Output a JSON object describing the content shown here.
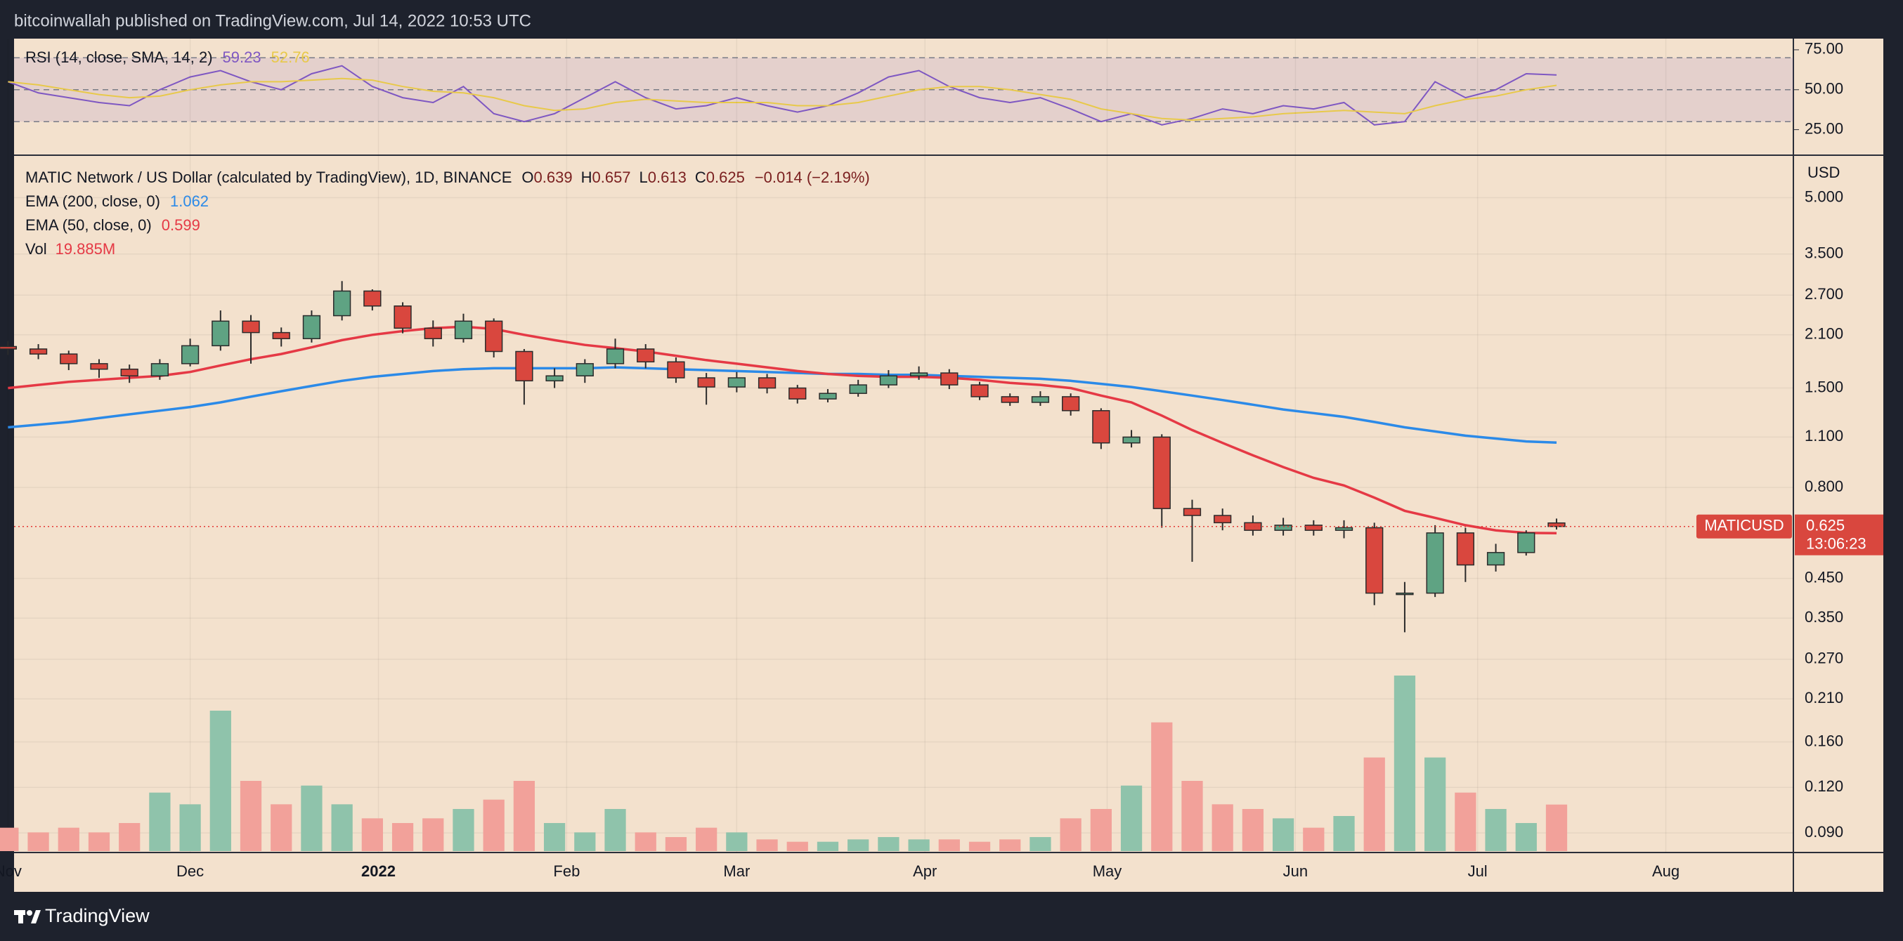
{
  "header": {
    "publisher": "bitcoinwallah published on TradingView.com, Jul 14, 2022 10:53 UTC"
  },
  "footer": {
    "brand": "TradingView"
  },
  "chart_data": [
    {
      "type": "rsi",
      "title": "RSI (14, close, SMA, 14, 2)",
      "x": [
        0,
        5,
        10,
        15,
        20,
        25,
        30,
        35,
        40,
        45,
        50,
        55,
        60,
        65,
        70,
        75,
        80,
        85,
        90,
        95,
        100,
        105,
        110,
        115,
        120,
        125,
        130,
        135,
        140,
        145,
        150,
        155,
        160,
        165,
        170,
        175,
        180,
        185,
        190,
        195,
        200,
        205,
        210,
        215,
        220,
        225,
        230,
        235,
        240,
        245,
        250,
        255
      ],
      "xlim": [
        1,
        294
      ],
      "ylim": [
        9,
        82
      ],
      "yticks": [
        {
          "value": 75,
          "label": "75.00"
        },
        {
          "value": 50,
          "label": "50.00"
        },
        {
          "value": 25,
          "label": "25.00"
        }
      ],
      "levels": [
        70,
        50,
        30
      ],
      "band_color": "#7e57c2",
      "series": [
        {
          "color": "#7e57c2",
          "values": [
            55,
            48,
            45,
            42,
            40,
            50,
            58,
            62,
            55,
            50,
            60,
            65,
            52,
            45,
            42,
            52,
            35,
            30,
            35,
            45,
            55,
            45,
            38,
            40,
            45,
            40,
            36,
            40,
            48,
            58,
            62,
            52,
            45,
            42,
            45,
            38,
            30,
            35,
            28,
            32,
            38,
            35,
            40,
            38,
            42,
            28,
            30,
            55,
            45,
            50,
            60,
            59.23
          ]
        },
        {
          "color": "#e8c94a",
          "values": [
            55,
            53,
            50,
            47,
            45,
            46,
            50,
            53,
            55,
            55,
            56,
            57,
            56,
            52,
            49,
            48,
            45,
            40,
            37,
            38,
            42,
            44,
            43,
            42,
            42,
            42,
            40,
            40,
            42,
            46,
            50,
            52,
            52,
            50,
            47,
            44,
            38,
            35,
            32,
            31,
            32,
            33,
            35,
            36,
            37,
            36,
            35,
            40,
            44,
            46,
            50,
            52.76
          ]
        }
      ]
    },
    {
      "type": "candlestick",
      "title": "MATIC Network / US Dollar (calculated by TradingView), 1D, BINANCE",
      "ohlc_labels": [
        "O",
        "H",
        "L",
        "C"
      ],
      "change": "−0.014 (−2.19%)",
      "symbol": "MATICUSD",
      "countdown": "13:06:23",
      "y_unit": "USD",
      "log_scale": true,
      "grid": true,
      "up_color": "#5fa383",
      "down_color": "#d9473e",
      "x": [
        0,
        5,
        10,
        15,
        20,
        25,
        30,
        35,
        40,
        45,
        50,
        55,
        60,
        65,
        70,
        75,
        80,
        85,
        90,
        95,
        100,
        105,
        110,
        115,
        120,
        125,
        130,
        135,
        140,
        145,
        150,
        155,
        160,
        165,
        170,
        175,
        180,
        185,
        190,
        195,
        200,
        205,
        210,
        215,
        220,
        225,
        230,
        235,
        240,
        245,
        250,
        255
      ],
      "xlim": [
        1,
        294
      ],
      "xticks": [
        {
          "value": 0,
          "label": "Nov"
        },
        {
          "value": 30,
          "label": "Dec"
        },
        {
          "value": 61,
          "label": "2022"
        },
        {
          "value": 92,
          "label": "Feb"
        },
        {
          "value": 120,
          "label": "Mar"
        },
        {
          "value": 151,
          "label": "Apr"
        },
        {
          "value": 181,
          "label": "May"
        },
        {
          "value": 212,
          "label": "Jun"
        },
        {
          "value": 242,
          "label": "Jul"
        },
        {
          "value": 273,
          "label": "Aug"
        }
      ],
      "ylim": [
        0.0795,
        6.54
      ],
      "yticks": [
        {
          "value": 5,
          "label": "5.000"
        },
        {
          "value": 3.5,
          "label": "3.500"
        },
        {
          "value": 2.7,
          "label": "2.700"
        },
        {
          "value": 2.1,
          "label": "2.100"
        },
        {
          "value": 1.5,
          "label": "1.500"
        },
        {
          "value": 1.1,
          "label": "1.100"
        },
        {
          "value": 0.8,
          "label": "0.800"
        },
        {
          "value": 0.45,
          "label": "0.450"
        },
        {
          "value": 0.35,
          "label": "0.350"
        },
        {
          "value": 0.27,
          "label": "0.270"
        },
        {
          "value": 0.21,
          "label": "0.210"
        },
        {
          "value": 0.16,
          "label": "0.160"
        },
        {
          "value": 0.12,
          "label": "0.120"
        },
        {
          "value": 0.09,
          "label": "0.090"
        }
      ],
      "open": [
        1.95,
        1.92,
        1.86,
        1.75,
        1.69,
        1.62,
        1.75,
        1.96,
        2.29,
        2.13,
        2.05,
        2.37,
        2.77,
        2.52,
        2.19,
        2.05,
        2.29,
        1.89,
        1.57,
        1.62,
        1.75,
        1.92,
        1.77,
        1.6,
        1.51,
        1.6,
        1.5,
        1.4,
        1.45,
        1.53,
        1.62,
        1.65,
        1.53,
        1.42,
        1.37,
        1.42,
        1.3,
        1.06,
        1.1,
        0.7,
        0.67,
        0.64,
        0.61,
        0.63,
        0.61,
        0.62,
        0.41,
        0.41,
        0.6,
        0.49,
        0.53,
        0.639
      ],
      "high": [
        2.02,
        1.98,
        1.9,
        1.8,
        1.74,
        1.8,
        2.05,
        2.45,
        2.38,
        2.2,
        2.45,
        2.95,
        2.8,
        2.58,
        2.3,
        2.4,
        2.33,
        1.92,
        1.7,
        1.8,
        2.05,
        1.98,
        1.82,
        1.65,
        1.66,
        1.64,
        1.53,
        1.49,
        1.58,
        1.68,
        1.72,
        1.69,
        1.56,
        1.45,
        1.47,
        1.45,
        1.32,
        1.15,
        1.12,
        0.74,
        0.7,
        0.67,
        0.66,
        0.65,
        0.65,
        0.64,
        0.44,
        0.63,
        0.62,
        0.56,
        0.61,
        0.657
      ],
      "low": [
        1.85,
        1.8,
        1.68,
        1.6,
        1.55,
        1.58,
        1.72,
        1.9,
        1.75,
        1.95,
        2.0,
        2.3,
        2.45,
        2.12,
        1.95,
        2.0,
        1.82,
        1.35,
        1.5,
        1.55,
        1.7,
        1.7,
        1.55,
        1.35,
        1.46,
        1.45,
        1.36,
        1.37,
        1.42,
        1.5,
        1.58,
        1.49,
        1.39,
        1.34,
        1.34,
        1.26,
        1.02,
        1.03,
        0.62,
        0.5,
        0.61,
        0.59,
        0.59,
        0.59,
        0.58,
        0.38,
        0.32,
        0.4,
        0.44,
        0.47,
        0.52,
        0.613
      ],
      "close": [
        1.92,
        1.86,
        1.75,
        1.69,
        1.62,
        1.75,
        1.96,
        2.29,
        2.13,
        2.05,
        2.37,
        2.77,
        2.52,
        2.19,
        2.05,
        2.29,
        1.89,
        1.57,
        1.62,
        1.75,
        1.92,
        1.77,
        1.6,
        1.51,
        1.6,
        1.5,
        1.4,
        1.45,
        1.53,
        1.62,
        1.65,
        1.53,
        1.42,
        1.37,
        1.42,
        1.3,
        1.06,
        1.1,
        0.7,
        0.67,
        0.64,
        0.61,
        0.63,
        0.61,
        0.62,
        0.41,
        0.41,
        0.6,
        0.49,
        0.53,
        0.6,
        0.625
      ],
      "series": [
        {
          "name": "EMA (200, close, 0)",
          "color": "#2b8ae8",
          "values": [
            1.17,
            1.19,
            1.21,
            1.24,
            1.27,
            1.3,
            1.33,
            1.37,
            1.42,
            1.47,
            1.52,
            1.57,
            1.61,
            1.64,
            1.67,
            1.69,
            1.7,
            1.7,
            1.7,
            1.7,
            1.71,
            1.7,
            1.69,
            1.68,
            1.67,
            1.66,
            1.65,
            1.64,
            1.64,
            1.63,
            1.63,
            1.62,
            1.61,
            1.6,
            1.59,
            1.57,
            1.54,
            1.51,
            1.47,
            1.43,
            1.39,
            1.35,
            1.31,
            1.28,
            1.25,
            1.21,
            1.17,
            1.14,
            1.11,
            1.09,
            1.07,
            1.062
          ]
        },
        {
          "name": "EMA (50, close, 0)",
          "color": "#e53945",
          "values": [
            1.5,
            1.53,
            1.56,
            1.58,
            1.6,
            1.62,
            1.66,
            1.73,
            1.8,
            1.86,
            1.94,
            2.03,
            2.1,
            2.15,
            2.19,
            2.21,
            2.18,
            2.1,
            2.03,
            1.97,
            1.93,
            1.89,
            1.84,
            1.79,
            1.75,
            1.71,
            1.67,
            1.64,
            1.62,
            1.61,
            1.61,
            1.6,
            1.58,
            1.55,
            1.53,
            1.5,
            1.43,
            1.37,
            1.26,
            1.15,
            1.06,
            0.98,
            0.91,
            0.85,
            0.81,
            0.75,
            0.69,
            0.66,
            0.63,
            0.61,
            0.6,
            0.599
          ]
        }
      ],
      "volume": {
        "name": "Vol",
        "last_label": "19.885M",
        "up_color": "#8fc3ab",
        "down_color": "#f2a19a",
        "values": [
          10,
          8,
          10,
          8,
          12,
          25,
          20,
          60,
          30,
          20,
          28,
          20,
          14,
          12,
          14,
          18,
          22,
          30,
          12,
          8,
          18,
          8,
          6,
          10,
          8,
          5,
          4,
          4,
          5,
          6,
          5,
          5,
          4,
          5,
          6,
          14,
          18,
          28,
          55,
          30,
          20,
          18,
          14,
          10,
          15,
          40,
          75,
          40,
          25,
          18,
          12,
          19.885
        ]
      }
    }
  ]
}
